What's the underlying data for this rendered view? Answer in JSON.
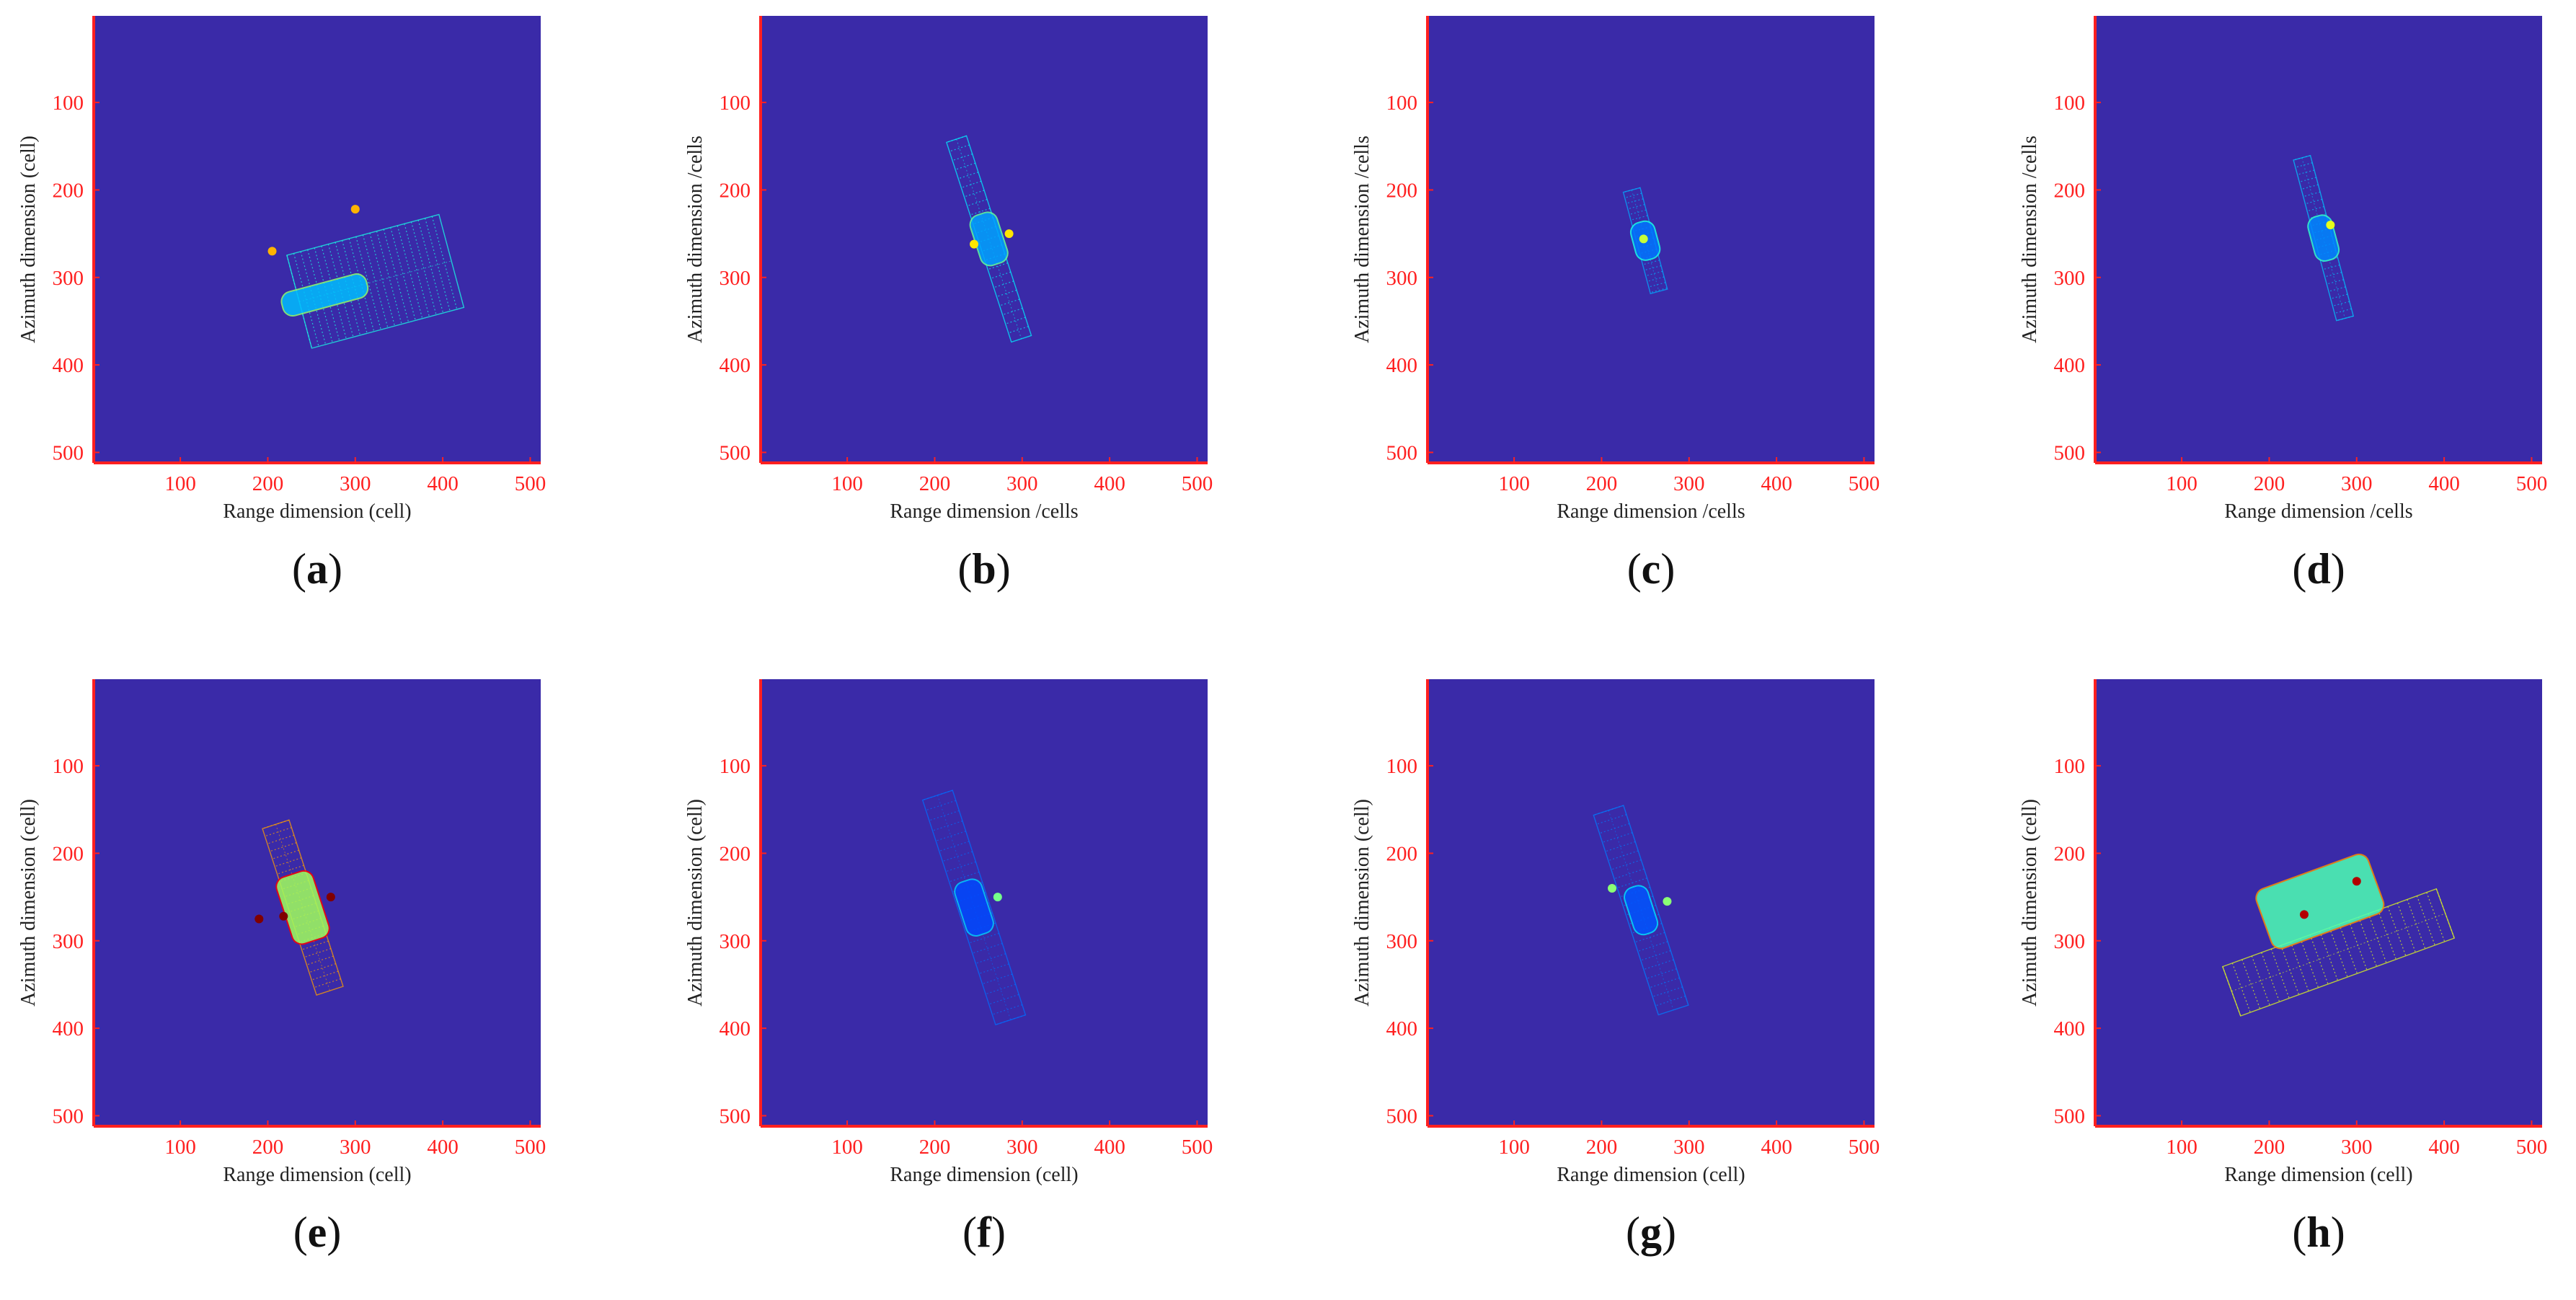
{
  "style": {
    "background": "#3a2aa8",
    "axis_color": "#ff2020",
    "caption_color": "#111111"
  },
  "chart_data": [
    {
      "type": "heatmap",
      "panel": "(a)",
      "xlabel": "Range dimension (cell)",
      "ylabel": "Azimuth dimension (cell)",
      "xlim": [
        1,
        512
      ],
      "ylim": [
        512,
        1
      ],
      "xticks": [
        100,
        200,
        300,
        400,
        500
      ],
      "yticks": [
        100,
        200,
        300,
        400,
        500
      ],
      "target": {
        "center": [
          265,
          320
        ],
        "angle_deg": -15,
        "body_half_len": 50,
        "body_half_wid": 14,
        "panel_span": [
          -30,
          150
        ],
        "panel_offset": 0,
        "panel_half_wid": 55,
        "intensity": 0.35,
        "hotspots": [
          [
            300,
            222
          ],
          [
            205,
            270
          ]
        ]
      }
    },
    {
      "type": "heatmap",
      "panel": "(b)",
      "xlabel": "Range dimension /cells",
      "ylabel": "Azimuth dimension /cells",
      "xlim": [
        1,
        512
      ],
      "ylim": [
        512,
        1
      ],
      "xticks": [
        100,
        200,
        300,
        400,
        500
      ],
      "yticks": [
        100,
        200,
        300,
        400,
        500
      ],
      "target": {
        "center": [
          262,
          256
        ],
        "angle_deg": 72,
        "body_half_len": 30,
        "body_half_wid": 16,
        "panel_span": [
          -120,
          120
        ],
        "panel_offset": 0,
        "panel_half_wid": 12,
        "intensity": 0.3,
        "hotspots": [
          [
            285,
            250
          ],
          [
            245,
            262
          ]
        ]
      }
    },
    {
      "type": "heatmap",
      "panel": "(c)",
      "xlabel": "Range dimension /cells",
      "ylabel": "Azimuth dimension /cells",
      "xlim": [
        1,
        512
      ],
      "ylim": [
        512,
        1
      ],
      "xticks": [
        100,
        200,
        300,
        400,
        500
      ],
      "yticks": [
        100,
        200,
        300,
        400,
        500
      ],
      "target": {
        "center": [
          250,
          258
        ],
        "angle_deg": 75,
        "body_half_len": 22,
        "body_half_wid": 14,
        "panel_span": [
          -60,
          60
        ],
        "panel_offset": 0,
        "panel_half_wid": 10,
        "intensity": 0.22,
        "hotspots": [
          [
            248,
            256
          ]
        ]
      }
    },
    {
      "type": "heatmap",
      "panel": "(d)",
      "xlabel": "Range dimension /cells",
      "ylabel": "Azimuth dimension /cells",
      "xlim": [
        1,
        512
      ],
      "ylim": [
        512,
        1
      ],
      "xticks": [
        100,
        200,
        300,
        400,
        500
      ],
      "yticks": [
        100,
        200,
        300,
        400,
        500
      ],
      "target": {
        "center": [
          262,
          255
        ],
        "angle_deg": 75,
        "body_half_len": 26,
        "body_half_wid": 14,
        "panel_span": [
          -95,
          95
        ],
        "panel_offset": 0,
        "panel_half_wid": 10,
        "intensity": 0.25,
        "hotspots": [
          [
            270,
            240
          ]
        ]
      }
    },
    {
      "type": "heatmap",
      "panel": "(e)",
      "xlabel": "Range dimension (cell)",
      "ylabel": "Azimuth dimension (cell)",
      "xlim": [
        1,
        512
      ],
      "ylim": [
        512,
        1
      ],
      "xticks": [
        100,
        200,
        300,
        400,
        500
      ],
      "yticks": [
        100,
        200,
        300,
        400,
        500
      ],
      "target": {
        "center": [
          240,
          262
        ],
        "angle_deg": 72,
        "body_half_len": 40,
        "body_half_wid": 22,
        "panel_span": [
          -100,
          100
        ],
        "panel_offset": 0,
        "panel_half_wid": 16,
        "intensity": 0.75,
        "hotspots": [
          [
            218,
            272
          ],
          [
            272,
            250
          ],
          [
            190,
            275
          ]
        ]
      }
    },
    {
      "type": "heatmap",
      "panel": "(f)",
      "xlabel": "Range dimension (cell)",
      "ylabel": "Azimuth dimension (cell)",
      "xlim": [
        1,
        512
      ],
      "ylim": [
        512,
        1
      ],
      "xticks": [
        100,
        200,
        300,
        400,
        500
      ],
      "yticks": [
        100,
        200,
        300,
        400,
        500
      ],
      "target": {
        "center": [
          245,
          262
        ],
        "angle_deg": 72,
        "body_half_len": 32,
        "body_half_wid": 16,
        "panel_span": [
          -135,
          135
        ],
        "panel_offset": 0,
        "panel_half_wid": 18,
        "intensity": 0.14,
        "hotspots": [
          [
            272,
            250
          ]
        ]
      }
    },
    {
      "type": "heatmap",
      "panel": "(g)",
      "xlabel": "Range dimension (cell)",
      "ylabel": "Azimuth dimension (cell)",
      "xlim": [
        1,
        512
      ],
      "ylim": [
        512,
        1
      ],
      "xticks": [
        100,
        200,
        300,
        400,
        500
      ],
      "yticks": [
        100,
        200,
        300,
        400,
        500
      ],
      "target": {
        "center": [
          245,
          265
        ],
        "angle_deg": 72,
        "body_half_len": 28,
        "body_half_wid": 14,
        "panel_span": [
          -120,
          120
        ],
        "panel_offset": 0,
        "panel_half_wid": 18,
        "intensity": 0.16,
        "hotspots": [
          [
            275,
            255
          ],
          [
            212,
            240
          ]
        ]
      }
    },
    {
      "type": "heatmap",
      "panel": "(h)",
      "xlabel": "Range dimension (cell)",
      "ylabel": "Azimuth dimension (cell)",
      "xlim": [
        1,
        512
      ],
      "ylim": [
        512,
        1
      ],
      "xticks": [
        100,
        200,
        300,
        400,
        500
      ],
      "yticks": [
        100,
        200,
        300,
        400,
        500
      ],
      "target": {
        "center": [
          258,
          255
        ],
        "angle_deg": -20,
        "body_half_len": 68,
        "body_half_wid": 36,
        "panel_span": [
          -130,
          130
        ],
        "panel_offset": 62,
        "panel_half_wid": 30,
        "intensity": 0.6,
        "hotspots": [
          [
            300,
            232
          ],
          [
            240,
            270
          ]
        ]
      }
    }
  ]
}
